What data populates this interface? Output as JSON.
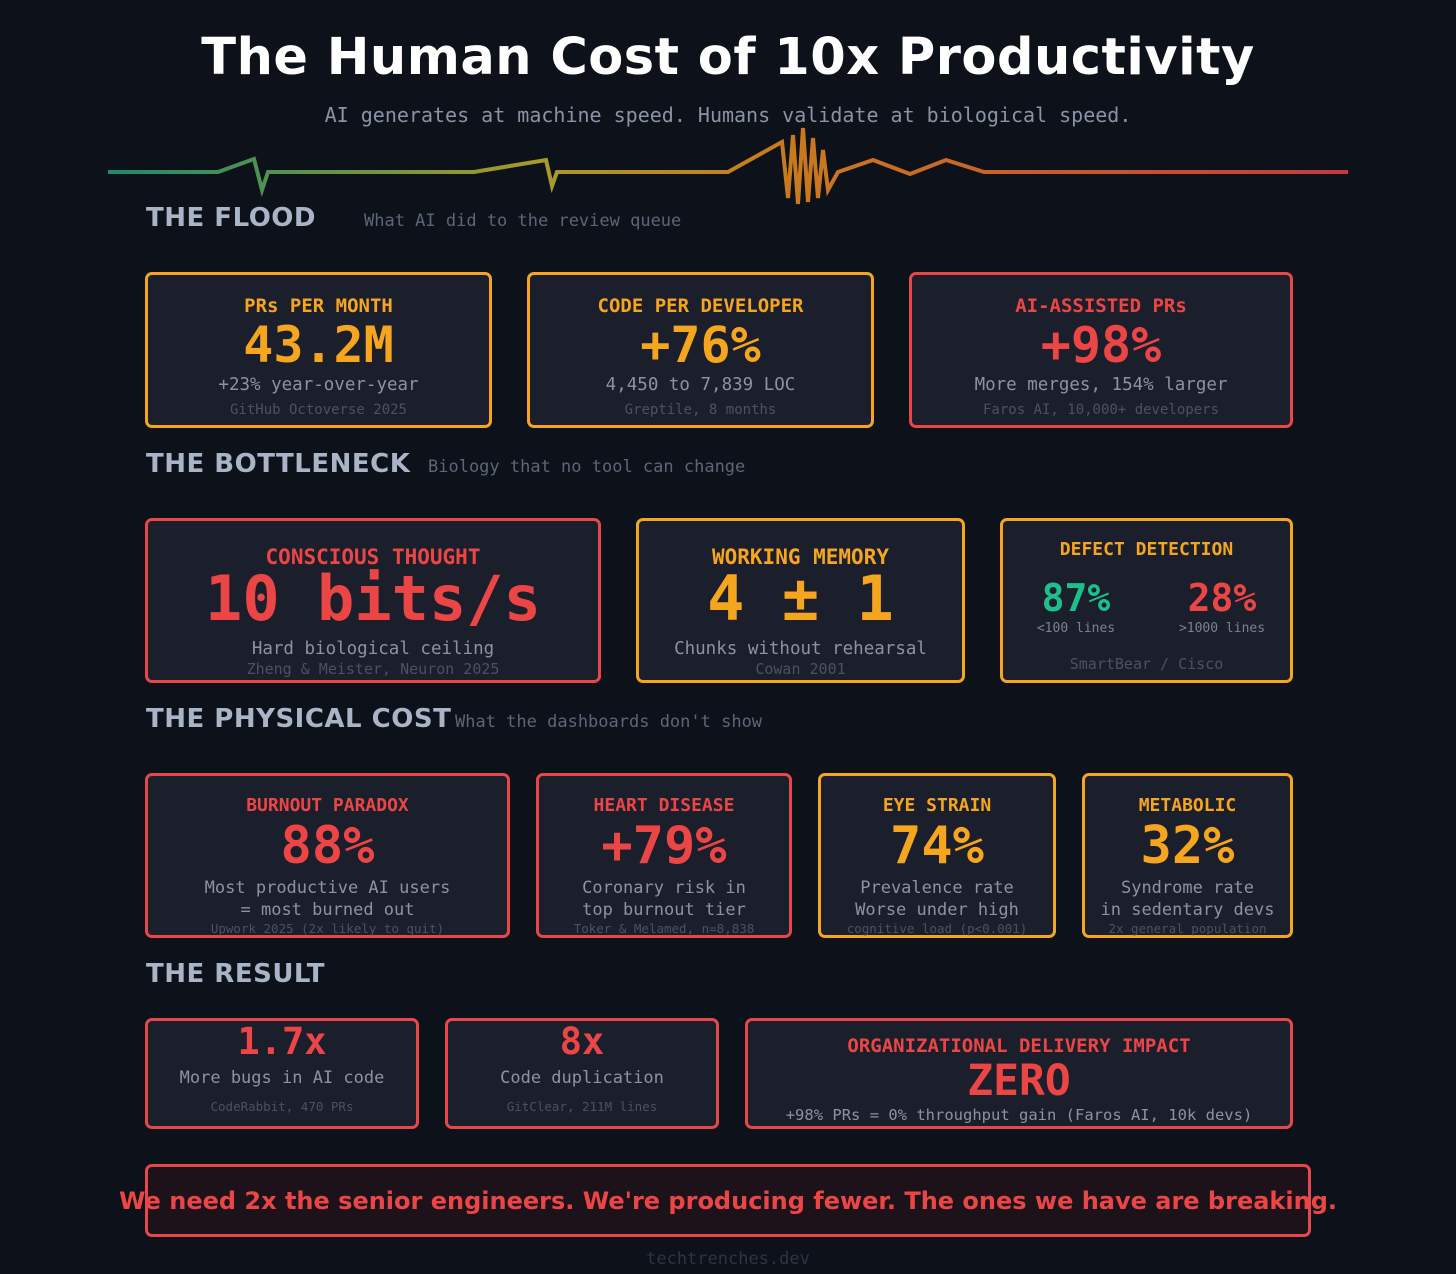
{
  "header": {
    "title": "The Human Cost of 10x Productivity",
    "subtitle": "AI generates at machine speed. Humans validate at biological speed."
  },
  "colors": {
    "background": "#0d111a",
    "card": "#1b1f2b",
    "amber": "#f5a51e",
    "red": "#ec4546",
    "green": "#1dbf8b"
  },
  "sections": {
    "flood": {
      "title": "THE FLOOD",
      "subtitle": "What AI did to the review queue",
      "cards": [
        {
          "label": "PRs PER MONTH",
          "value": "43.2M",
          "desc": "+23% year-over-year",
          "source": "GitHub Octoverse 2025"
        },
        {
          "label": "CODE PER DEVELOPER",
          "value": "+76%",
          "desc": "4,450 to 7,839 LOC",
          "source": "Greptile, 8 months"
        },
        {
          "label": "AI-ASSISTED PRs",
          "value": "+98%",
          "desc": "More merges, 154% larger",
          "source": "Faros AI, 10,000+ developers"
        }
      ]
    },
    "bottleneck": {
      "title": "THE BOTTLENECK",
      "subtitle": "Biology that no tool can change",
      "cards": [
        {
          "label": "CONSCIOUS THOUGHT",
          "value": "10 bits/s",
          "desc": "Hard biological ceiling",
          "source": "Zheng & Meister, Neuron 2025"
        },
        {
          "label": "WORKING MEMORY",
          "value": "4 ± 1",
          "desc": "Chunks without rehearsal",
          "source": "Cowan 2001"
        },
        {
          "label": "DEFECT DETECTION",
          "left_value": "87%",
          "left_note": "<100 lines",
          "right_value": "28%",
          "right_note": ">1000 lines",
          "source": "SmartBear / Cisco"
        }
      ]
    },
    "physical": {
      "title": "THE PHYSICAL COST",
      "subtitle": "What the dashboards don't show",
      "cards": [
        {
          "label": "BURNOUT PARADOX",
          "value": "88%",
          "desc1": "Most productive AI users",
          "desc2": "= most burned out",
          "source": "Upwork 2025 (2x likely to quit)"
        },
        {
          "label": "HEART DISEASE",
          "value": "+79%",
          "desc1": "Coronary risk in",
          "desc2": "top burnout tier",
          "source": "Toker & Melamed, n=8,838"
        },
        {
          "label": "EYE STRAIN",
          "value": "74%",
          "desc1": "Prevalence rate",
          "desc2": "Worse under high",
          "source": "cognitive load (p<0.001)"
        },
        {
          "label": "METABOLIC",
          "value": "32%",
          "desc1": "Syndrome rate",
          "desc2": "in sedentary devs",
          "source": "2x general population"
        }
      ]
    },
    "result": {
      "title": "THE RESULT",
      "cards": [
        {
          "value": "1.7x",
          "desc": "More bugs in AI code",
          "source": "CodeRabbit, 470 PRs"
        },
        {
          "value": "8x",
          "desc": "Code duplication",
          "source": "GitClear, 211M lines"
        },
        {
          "label": "ORGANIZATIONAL DELIVERY IMPACT",
          "value": "ZERO",
          "desc": "+98% PRs = 0% throughput gain (Faros AI, 10k devs)"
        }
      ]
    }
  },
  "banner": "We need 2x the senior engineers. We're producing fewer. The ones we have are breaking.",
  "footer": "techtrenches.dev"
}
